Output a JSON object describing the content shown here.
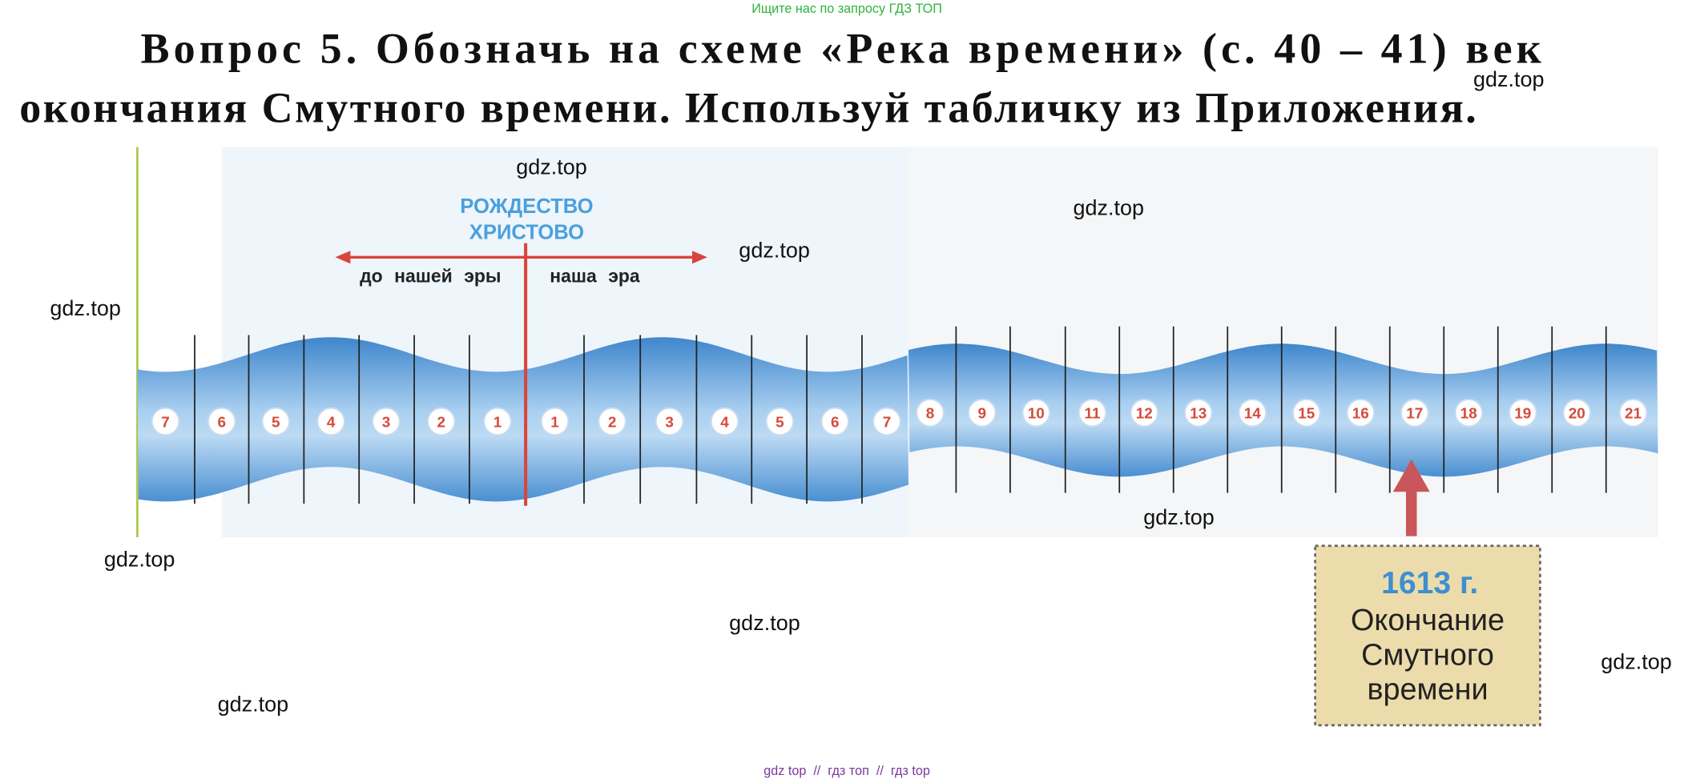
{
  "header": {
    "notice": "Ищите нас по запросу ГДЗ ТОП"
  },
  "question": {
    "lines": [
      "Вопрос 5. Обозначь на схеме «Река времени» (с. 40 – 41) век",
      "окончания Смутного времени. Используй табличку из Приложения."
    ]
  },
  "diagram": {
    "birth_label": [
      "РОЖДЕСТВО",
      "ХРИСТОВО"
    ],
    "before_era": "до нашей эры",
    "our_era": "наша эра",
    "bc_centuries": [
      7,
      6,
      5,
      4,
      3,
      2,
      1
    ],
    "ad_centuries": [
      1,
      2,
      3,
      4,
      5,
      6,
      7,
      8,
      9,
      10,
      11,
      12,
      13,
      14,
      15,
      16,
      17,
      18,
      19,
      20,
      21
    ],
    "callout": {
      "year": "1613 г.",
      "lines": [
        "Окончание",
        "Смутного",
        "времени"
      ]
    }
  },
  "watermarks": [
    "gdz.top",
    "gdz.top",
    "gdz.top",
    "gdz.top",
    "gdz.top",
    "gdz.top",
    "gdz.top",
    "gdz.top",
    "gdz.top",
    "gdz.top"
  ],
  "footer": "gdz top  //  гдз топ  //  гдз top"
}
